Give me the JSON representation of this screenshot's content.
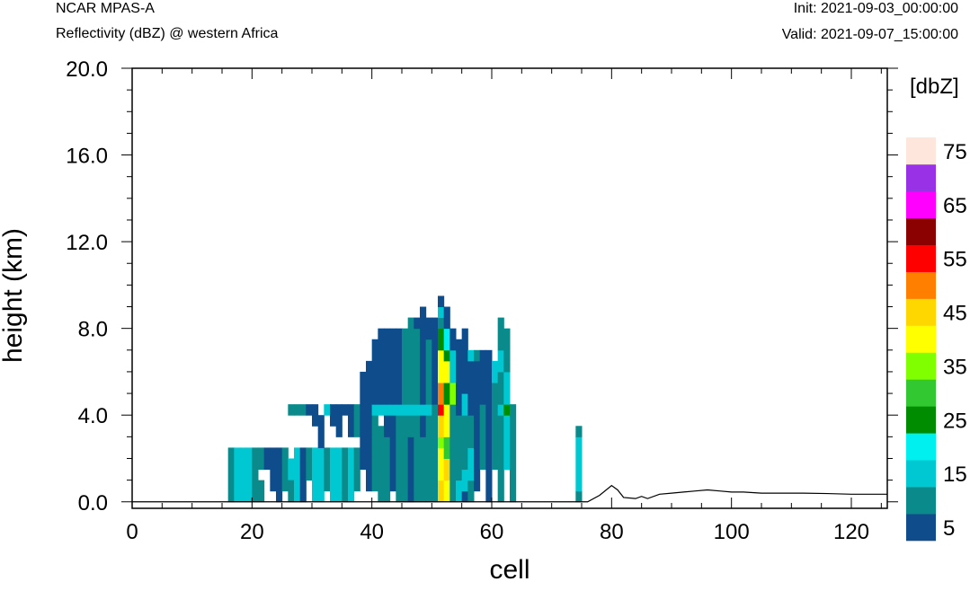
{
  "header": {
    "model": "NCAR MPAS-A",
    "field": "Reflectivity (dBZ) @ western Africa",
    "init": "Init: 2021-09-03_00:00:00",
    "valid": "Valid: 2021-09-07_15:00:00"
  },
  "chart_data": {
    "type": "heatmap",
    "title": "Reflectivity (dBZ) @ western Africa",
    "xlabel": "cell",
    "ylabel": "height (km)",
    "xlim": [
      0,
      126
    ],
    "ylim": [
      -0.3,
      20
    ],
    "x_ticks": [
      0,
      20,
      40,
      60,
      80,
      100,
      120
    ],
    "x_tick_labels": [
      "0",
      "20",
      "40",
      "60",
      "80",
      "100",
      "120"
    ],
    "y_ticks": [
      0,
      4,
      8,
      12,
      16,
      20
    ],
    "y_tick_labels": [
      "0.0",
      "4.0",
      "8.0",
      "12.0",
      "16.0",
      "20.0"
    ],
    "grid": false,
    "colorbar": {
      "unit_label": "[dbZ]",
      "placement": "right",
      "boundaries": [
        0,
        5,
        10,
        15,
        20,
        25,
        30,
        35,
        40,
        45,
        50,
        55,
        60,
        65,
        70,
        75,
        80
      ],
      "colors": [
        "#0f4c8c",
        "#0a8a8a",
        "#00c8d2",
        "#00f0f0",
        "#008c00",
        "#32c832",
        "#80ff00",
        "#ffff00",
        "#ffd700",
        "#ff8000",
        "#ff0000",
        "#8b0000",
        "#ff00ff",
        "#9932e6",
        "#ffe6dc"
      ],
      "tick_labels": [
        "5",
        "15",
        "25",
        "35",
        "45",
        "55",
        "65",
        "75"
      ]
    },
    "terrain": [
      [
        0,
        0
      ],
      [
        76,
        0
      ],
      [
        78,
        0.3
      ],
      [
        80,
        0.75
      ],
      [
        81,
        0.55
      ],
      [
        82,
        0.2
      ],
      [
        84,
        0.15
      ],
      [
        85,
        0.25
      ],
      [
        86,
        0.15
      ],
      [
        88,
        0.35
      ],
      [
        90,
        0.4
      ],
      [
        92,
        0.45
      ],
      [
        94,
        0.5
      ],
      [
        96,
        0.55
      ],
      [
        98,
        0.5
      ],
      [
        100,
        0.45
      ],
      [
        102,
        0.45
      ],
      [
        105,
        0.4
      ],
      [
        108,
        0.4
      ],
      [
        112,
        0.4
      ],
      [
        116,
        0.38
      ],
      [
        120,
        0.35
      ],
      [
        124,
        0.35
      ],
      [
        126,
        0.35
      ]
    ],
    "cell_height_km": 0.5,
    "cells": [
      [
        16,
        0,
        2.5,
        1
      ],
      [
        17,
        0,
        2.5,
        2
      ],
      [
        18,
        0,
        2.5,
        2
      ],
      [
        19,
        0,
        2.5,
        2
      ],
      [
        20,
        0,
        2.5,
        1
      ],
      [
        21,
        0,
        1.0,
        1
      ],
      [
        21,
        1.5,
        1.0,
        1
      ],
      [
        22,
        1.5,
        1.0,
        0
      ],
      [
        23,
        0.5,
        2.0,
        0
      ],
      [
        24,
        0,
        2.5,
        0
      ],
      [
        25,
        0.5,
        2.0,
        1
      ],
      [
        26,
        1,
        1.0,
        2
      ],
      [
        26,
        0,
        1.0,
        1
      ],
      [
        27,
        0,
        2.5,
        2
      ],
      [
        28,
        0,
        2.5,
        0
      ],
      [
        29,
        1,
        1.5,
        1
      ],
      [
        30,
        0,
        2.5,
        2
      ],
      [
        31,
        0,
        2.5,
        2
      ],
      [
        32,
        0.5,
        2,
        1
      ],
      [
        33,
        0,
        2.5,
        2
      ],
      [
        34,
        0,
        2.5,
        2
      ],
      [
        35,
        0,
        2.5,
        1
      ],
      [
        36,
        0,
        2.5,
        2
      ],
      [
        37,
        0.5,
        2,
        1
      ],
      [
        26,
        4,
        0.5,
        1
      ],
      [
        27,
        4,
        0.5,
        1
      ],
      [
        28,
        4,
        0.5,
        1
      ],
      [
        29,
        4,
        0.5,
        0
      ],
      [
        30,
        3.5,
        1.0,
        0
      ],
      [
        31,
        2.5,
        1.5,
        0
      ],
      [
        32,
        4,
        0.5,
        2
      ],
      [
        33,
        3.5,
        1,
        0
      ],
      [
        34,
        3,
        1.5,
        0
      ],
      [
        35,
        4,
        0.5,
        0
      ],
      [
        36,
        3,
        1.5,
        0
      ],
      [
        37,
        3,
        1.5,
        1
      ],
      [
        38,
        1.5,
        3.0,
        0
      ],
      [
        38,
        4.5,
        1.5,
        0
      ],
      [
        39,
        0.5,
        6,
        0
      ],
      [
        40,
        0.5,
        4,
        1
      ],
      [
        40,
        4,
        0.5,
        2
      ],
      [
        40,
        4.5,
        3,
        0
      ],
      [
        41,
        0,
        3.5,
        1
      ],
      [
        41,
        4,
        0.5,
        2
      ],
      [
        41,
        4.5,
        3.5,
        0
      ],
      [
        42,
        0,
        3,
        1
      ],
      [
        42,
        3,
        1,
        0
      ],
      [
        42,
        4,
        0.5,
        2
      ],
      [
        42,
        4.5,
        3.5,
        0
      ],
      [
        43,
        0.5,
        3.5,
        0
      ],
      [
        43,
        4,
        0.5,
        2
      ],
      [
        43,
        4.5,
        3.5,
        0
      ],
      [
        44,
        0,
        4,
        1
      ],
      [
        44,
        4,
        0.5,
        2
      ],
      [
        44,
        4.5,
        3.5,
        0
      ],
      [
        45,
        0,
        4,
        1
      ],
      [
        45,
        4,
        0.5,
        2
      ],
      [
        45,
        4.5,
        3.5,
        1
      ],
      [
        46,
        0,
        3,
        0
      ],
      [
        46,
        3,
        1,
        1
      ],
      [
        46,
        4,
        0.5,
        2
      ],
      [
        46,
        4.5,
        4,
        1
      ],
      [
        47,
        0,
        4,
        1
      ],
      [
        47,
        4,
        0.5,
        2
      ],
      [
        47,
        4.5,
        3.5,
        1
      ],
      [
        47,
        8,
        0.5,
        0
      ],
      [
        48,
        0,
        3,
        1
      ],
      [
        48,
        3,
        1,
        0
      ],
      [
        48,
        4,
        0.5,
        2
      ],
      [
        48,
        4.5,
        4.5,
        0
      ],
      [
        49,
        0,
        4,
        1
      ],
      [
        49,
        4,
        0.5,
        2
      ],
      [
        49,
        4.5,
        3,
        1
      ],
      [
        49,
        7.5,
        1,
        0
      ],
      [
        50,
        0,
        4.5,
        1
      ],
      [
        50,
        4.5,
        4,
        0
      ],
      [
        51,
        0,
        1,
        8
      ],
      [
        51,
        1,
        1.5,
        7
      ],
      [
        51,
        2.5,
        0.5,
        6
      ],
      [
        51,
        3,
        1,
        8
      ],
      [
        51,
        4,
        0.5,
        10
      ],
      [
        51,
        4.5,
        1,
        9
      ],
      [
        51,
        5.5,
        1.5,
        7
      ],
      [
        51,
        7,
        1,
        4
      ],
      [
        51,
        8,
        0.5,
        1
      ],
      [
        51,
        8.5,
        0.5,
        2
      ],
      [
        51,
        9,
        0.5,
        0
      ],
      [
        52,
        0,
        1,
        7
      ],
      [
        52,
        1,
        1,
        8
      ],
      [
        52,
        2,
        1,
        5
      ],
      [
        52,
        3,
        1.5,
        7
      ],
      [
        52,
        4.5,
        1,
        4
      ],
      [
        52,
        5.5,
        1,
        7
      ],
      [
        52,
        6.5,
        0.5,
        4
      ],
      [
        52,
        7,
        1,
        3
      ],
      [
        52,
        8,
        1,
        0
      ],
      [
        53,
        0,
        4.5,
        1
      ],
      [
        53,
        4.5,
        1,
        6
      ],
      [
        53,
        5.5,
        1.5,
        2
      ],
      [
        53,
        7,
        1,
        0
      ],
      [
        54,
        0,
        1,
        2
      ],
      [
        54,
        1,
        3,
        1
      ],
      [
        54,
        4,
        3.5,
        0
      ],
      [
        55,
        0,
        0.5,
        0
      ],
      [
        55,
        0.5,
        1,
        2
      ],
      [
        55,
        1.5,
        2.5,
        1
      ],
      [
        55,
        4,
        1,
        2
      ],
      [
        55,
        5,
        3,
        0
      ],
      [
        56,
        0,
        1,
        1
      ],
      [
        56,
        1,
        1.5,
        2
      ],
      [
        56,
        2.5,
        1.5,
        1
      ],
      [
        56,
        4,
        2.5,
        0
      ],
      [
        56,
        6.5,
        0.5,
        2
      ],
      [
        57,
        0.5,
        3.5,
        0
      ],
      [
        57,
        4,
        2.5,
        0
      ],
      [
        57,
        6.5,
        0.5,
        1
      ],
      [
        58,
        1.5,
        3,
        1
      ],
      [
        58,
        4.5,
        2,
        0
      ],
      [
        58,
        6.5,
        0.5,
        0
      ],
      [
        59,
        0,
        4.5,
        0
      ],
      [
        59,
        4.5,
        2.5,
        0
      ],
      [
        60,
        1.5,
        2.5,
        1
      ],
      [
        60,
        4,
        1.5,
        1
      ],
      [
        60,
        5.5,
        1,
        2
      ],
      [
        61,
        0,
        4,
        1
      ],
      [
        61,
        4,
        0.5,
        2
      ],
      [
        61,
        4.5,
        1.5,
        1
      ],
      [
        61,
        6,
        1,
        2
      ],
      [
        61,
        7,
        1.5,
        1
      ],
      [
        62,
        1.5,
        2.5,
        2
      ],
      [
        62,
        4,
        0.5,
        4
      ],
      [
        62,
        4.5,
        1.5,
        2
      ],
      [
        62,
        6,
        2,
        1
      ],
      [
        63,
        0,
        4.5,
        1
      ],
      [
        74,
        0,
        0.5,
        1
      ],
      [
        74,
        0.5,
        2.5,
        2
      ],
      [
        74,
        3,
        0.5,
        1
      ]
    ]
  }
}
